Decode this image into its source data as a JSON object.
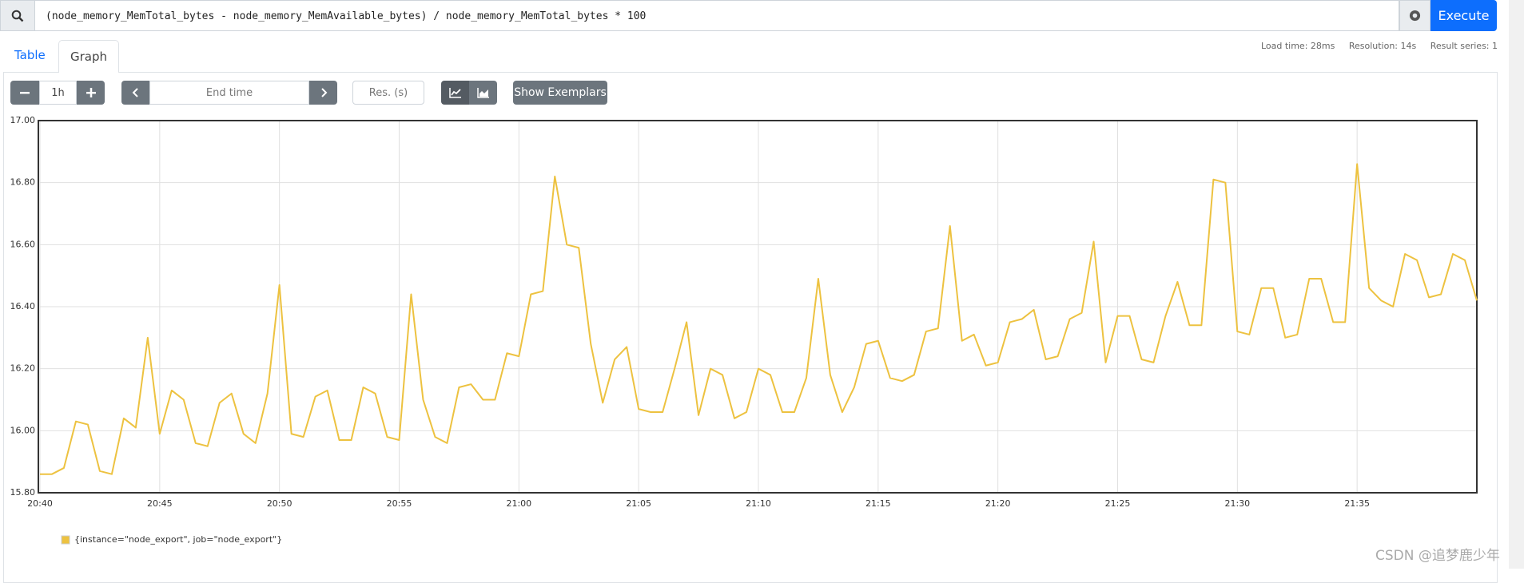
{
  "query": "(node_memory_MemTotal_bytes - node_memory_MemAvailable_bytes) / node_memory_MemTotal_bytes * 100",
  "execute": "Execute",
  "tabs": [
    "Table",
    "Graph"
  ],
  "stats": [
    "Load time: 28ms",
    "Resolution: 14s",
    "Result series: 1"
  ],
  "controls": {
    "range": "1h",
    "end_time": "End time",
    "resolution": "Res. (s)",
    "exemplars": "Show Exemplars"
  },
  "watermark": "CSDN @追梦鹿少年",
  "chart_data": {
    "type": "line",
    "xlim": [
      "20:40:00",
      "21:40:00"
    ],
    "xticks": [
      "20:40",
      "20:45",
      "20:50",
      "20:55",
      "21:00",
      "21:05",
      "21:10",
      "21:15",
      "21:20",
      "21:25",
      "21:30",
      "21:35"
    ],
    "ylim": [
      15.8,
      17
    ],
    "yticks": [
      {
        "value": 15.8,
        "label": "15.80"
      },
      {
        "value": 16,
        "label": "16.00"
      },
      {
        "value": 16.2,
        "label": "16.20"
      },
      {
        "value": 16.4,
        "label": "16.40"
      },
      {
        "value": 16.6,
        "label": "16.60"
      },
      {
        "value": 16.8,
        "label": "16.80"
      },
      {
        "value": 17,
        "label": "17.00"
      }
    ],
    "grid": true,
    "x": [
      "20:40:00",
      "20:40:30",
      "20:41:00",
      "20:41:30",
      "20:42:00",
      "20:42:30",
      "20:43:00",
      "20:43:30",
      "20:44:00",
      "20:44:30",
      "20:45:00",
      "20:45:30",
      "20:46:00",
      "20:46:30",
      "20:47:00",
      "20:47:30",
      "20:48:00",
      "20:48:30",
      "20:49:00",
      "20:49:30",
      "20:50:00",
      "20:50:30",
      "20:51:00",
      "20:51:30",
      "20:52:00",
      "20:52:30",
      "20:53:00",
      "20:53:30",
      "20:54:00",
      "20:54:30",
      "20:55:00",
      "20:55:30",
      "20:56:00",
      "20:56:30",
      "20:57:00",
      "20:57:30",
      "20:58:00",
      "20:58:30",
      "20:59:00",
      "20:59:30",
      "21:00:00",
      "21:00:30",
      "21:01:00",
      "21:01:30",
      "21:02:00",
      "21:02:30",
      "21:03:00",
      "21:03:30",
      "21:04:00",
      "21:04:30",
      "21:05:00",
      "21:05:30",
      "21:06:00",
      "21:06:30",
      "21:07:00",
      "21:07:30",
      "21:08:00",
      "21:08:30",
      "21:09:00",
      "21:09:30",
      "21:10:00",
      "21:10:30",
      "21:11:00",
      "21:11:30",
      "21:12:00",
      "21:12:30",
      "21:13:00",
      "21:13:30",
      "21:14:00",
      "21:14:30",
      "21:15:00",
      "21:15:30",
      "21:16:00",
      "21:16:30",
      "21:17:00",
      "21:17:30",
      "21:18:00",
      "21:18:30",
      "21:19:00",
      "21:19:30",
      "21:20:00",
      "21:20:30",
      "21:21:00",
      "21:21:30",
      "21:22:00",
      "21:22:30",
      "21:23:00",
      "21:23:30",
      "21:24:00",
      "21:24:30",
      "21:25:00",
      "21:25:30",
      "21:26:00",
      "21:26:30",
      "21:27:00",
      "21:27:30",
      "21:28:00",
      "21:28:30",
      "21:29:00",
      "21:29:30",
      "21:30:00",
      "21:30:30",
      "21:31:00",
      "21:31:30",
      "21:32:00",
      "21:32:30",
      "21:33:00",
      "21:33:30",
      "21:34:00",
      "21:34:30",
      "21:35:00",
      "21:35:30",
      "21:36:00",
      "21:36:30",
      "21:37:00",
      "21:37:30",
      "21:38:00",
      "21:38:30",
      "21:39:00",
      "21:39:30",
      "21:40:00"
    ],
    "series": [
      {
        "name": "{instance=\"node_export\", job=\"node_export\"}",
        "color": "#edc240",
        "values": [
          15.86,
          15.86,
          15.88,
          16.03,
          16.02,
          15.87,
          15.86,
          16.04,
          16.01,
          16.3,
          15.99,
          16.13,
          16.1,
          15.96,
          15.95,
          16.09,
          16.12,
          15.99,
          15.96,
          16.12,
          16.47,
          15.99,
          15.98,
          16.11,
          16.13,
          15.97,
          15.97,
          16.14,
          16.12,
          15.98,
          15.97,
          16.44,
          16.1,
          15.98,
          15.96,
          16.14,
          16.15,
          16.1,
          16.1,
          16.25,
          16.24,
          16.44,
          16.45,
          16.82,
          16.6,
          16.59,
          16.28,
          16.09,
          16.23,
          16.27,
          16.07,
          16.06,
          16.06,
          16.2,
          16.35,
          16.05,
          16.2,
          16.18,
          16.04,
          16.06,
          16.2,
          16.18,
          16.06,
          16.06,
          16.17,
          16.49,
          16.18,
          16.06,
          16.14,
          16.28,
          16.29,
          16.17,
          16.16,
          16.18,
          16.32,
          16.33,
          16.66,
          16.29,
          16.31,
          16.21,
          16.22,
          16.35,
          16.36,
          16.39,
          16.23,
          16.24,
          16.36,
          16.38,
          16.61,
          16.22,
          16.37,
          16.37,
          16.23,
          16.22,
          16.37,
          16.48,
          16.34,
          16.34,
          16.81,
          16.8,
          16.32,
          16.31,
          16.46,
          16.46,
          16.3,
          16.31,
          16.49,
          16.49,
          16.35,
          16.35,
          16.86,
          16.46,
          16.42,
          16.4,
          16.57,
          16.55,
          16.43,
          16.44,
          16.57,
          16.55,
          16.42
        ]
      }
    ]
  }
}
